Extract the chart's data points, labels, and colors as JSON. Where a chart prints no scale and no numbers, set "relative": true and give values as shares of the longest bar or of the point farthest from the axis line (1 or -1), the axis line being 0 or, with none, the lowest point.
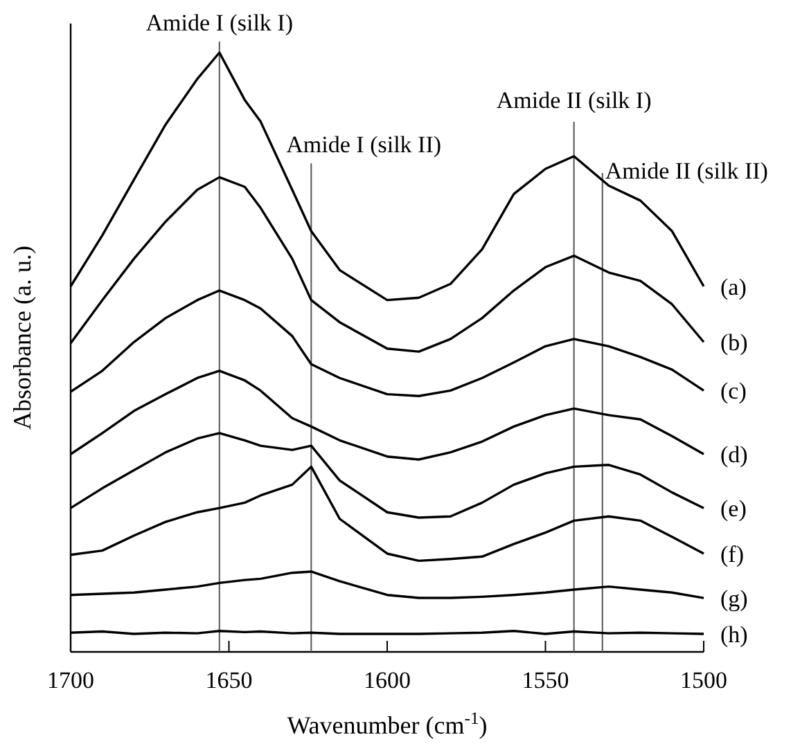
{
  "chart_data": {
    "type": "line",
    "relative": true,
    "xlabel": "Wavenumber (cm$^{-1}$)",
    "ylabel": "Absorbance (a. u.)",
    "x": [
      1700,
      1690,
      1680,
      1670,
      1660,
      1653,
      1645,
      1640,
      1630,
      1624,
      1615,
      1600,
      1590,
      1580,
      1570,
      1560,
      1550,
      1541,
      1530,
      1520,
      1510,
      1500
    ],
    "xlim": [
      1700,
      1500
    ],
    "xticks": [
      1700,
      1650,
      1600,
      1550,
      1500
    ],
    "grid": false,
    "legend": false,
    "marker": "none",
    "line_style": "solid",
    "series": [
      {
        "name": "(a)",
        "color": "#000000",
        "values": [
          0.61,
          0.695,
          0.788,
          0.88,
          0.956,
          1,
          0.921,
          0.885,
          0.771,
          0.702,
          0.637,
          0.587,
          0.591,
          0.614,
          0.672,
          0.764,
          0.806,
          0.827,
          0.778,
          0.753,
          0.702,
          0.61
        ]
      },
      {
        "name": "(b)",
        "color": "#000000",
        "values": [
          0.515,
          0.587,
          0.656,
          0.718,
          0.771,
          0.792,
          0.776,
          0.741,
          0.656,
          0.587,
          0.55,
          0.506,
          0.501,
          0.522,
          0.557,
          0.603,
          0.642,
          0.661,
          0.633,
          0.619,
          0.58,
          0.517
        ]
      },
      {
        "name": "(c)",
        "color": "#000000",
        "values": [
          0.434,
          0.469,
          0.517,
          0.557,
          0.587,
          0.603,
          0.587,
          0.573,
          0.527,
          0.48,
          0.457,
          0.43,
          0.427,
          0.436,
          0.457,
          0.483,
          0.51,
          0.522,
          0.51,
          0.492,
          0.471,
          0.436
        ]
      },
      {
        "name": "(d)",
        "color": "#000000",
        "values": [
          0.33,
          0.365,
          0.402,
          0.43,
          0.457,
          0.469,
          0.453,
          0.436,
          0.39,
          0.376,
          0.353,
          0.326,
          0.321,
          0.333,
          0.351,
          0.376,
          0.395,
          0.406,
          0.395,
          0.388,
          0.36,
          0.33
        ]
      },
      {
        "name": "(e)",
        "color": "#000000",
        "values": [
          0.24,
          0.273,
          0.303,
          0.333,
          0.356,
          0.365,
          0.353,
          0.344,
          0.337,
          0.344,
          0.286,
          0.233,
          0.224,
          0.226,
          0.249,
          0.279,
          0.298,
          0.309,
          0.312,
          0.296,
          0.266,
          0.24
        ]
      },
      {
        "name": "(f)",
        "color": "#000000",
        "values": [
          0.162,
          0.169,
          0.194,
          0.217,
          0.233,
          0.24,
          0.249,
          0.261,
          0.279,
          0.309,
          0.222,
          0.164,
          0.152,
          0.155,
          0.159,
          0.18,
          0.199,
          0.219,
          0.226,
          0.219,
          0.192,
          0.164
        ]
      },
      {
        "name": "(g)",
        "color": "#000000",
        "values": [
          0.095,
          0.097,
          0.099,
          0.104,
          0.109,
          0.115,
          0.12,
          0.122,
          0.132,
          0.134,
          0.118,
          0.095,
          0.09,
          0.09,
          0.092,
          0.095,
          0.099,
          0.104,
          0.109,
          0.104,
          0.099,
          0.09
        ]
      },
      {
        "name": "(h)",
        "color": "#000000",
        "values": [
          0.032,
          0.034,
          0.03,
          0.032,
          0.031,
          0.035,
          0.033,
          0.034,
          0.031,
          0.032,
          0.03,
          0.03,
          0.03,
          0.031,
          0.032,
          0.035,
          0.03,
          0.034,
          0.031,
          0.032,
          0.031,
          0.03
        ]
      }
    ],
    "ref_lines": [
      {
        "axis": "x",
        "value": 1653,
        "label": "Amide I (silk I)",
        "color": "#555555"
      },
      {
        "axis": "x",
        "value": 1624,
        "label": "Amide I (silk II)",
        "color": "#555555"
      },
      {
        "axis": "x",
        "value": 1541,
        "label": "Amide II (silk I)",
        "color": "#555555"
      },
      {
        "axis": "x",
        "value": 1532,
        "label": "Amide II (silk II)",
        "color": "#555555"
      }
    ]
  }
}
